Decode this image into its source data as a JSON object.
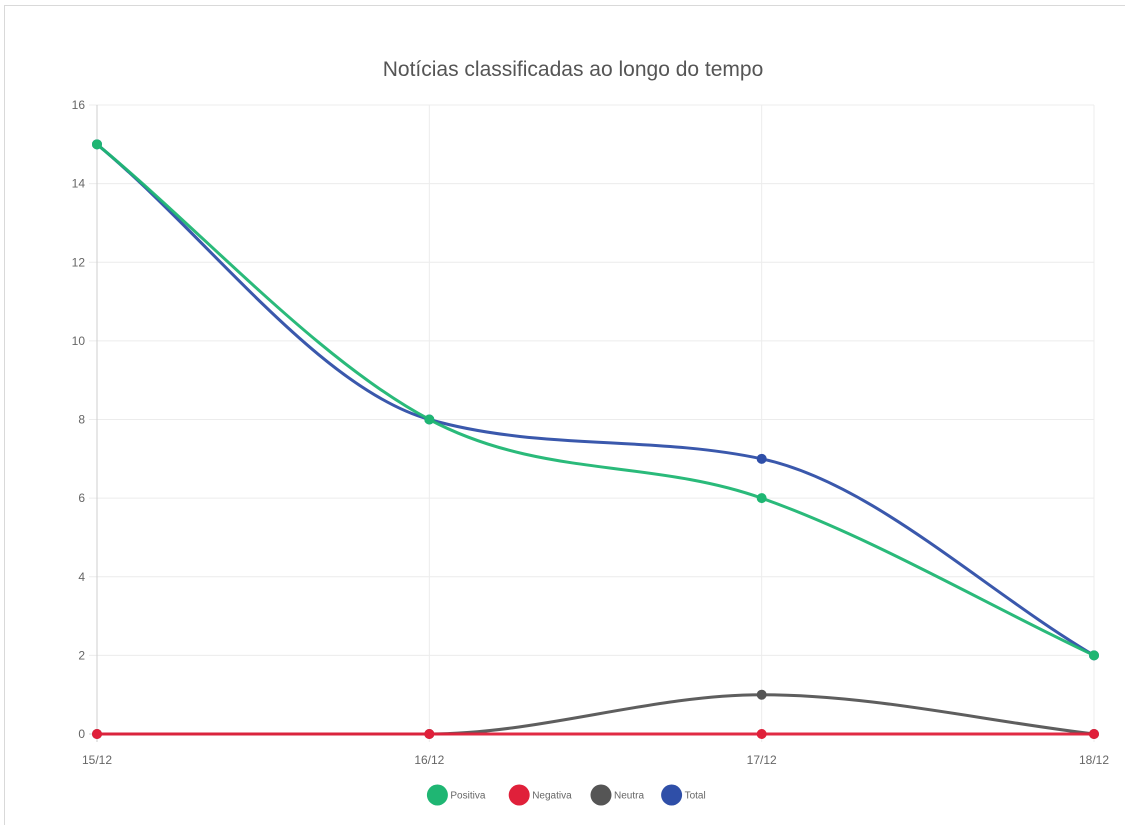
{
  "chart_data": {
    "type": "line",
    "title": "Notícias classificadas ao longo do tempo",
    "categories": [
      "15/12",
      "16/12",
      "17/12",
      "18/12"
    ],
    "y_ticks": [
      "0",
      "2",
      "4",
      "6",
      "8",
      "10",
      "12",
      "14",
      "16"
    ],
    "ylim": [
      0,
      16
    ],
    "grid": true,
    "legend_position": "bottom",
    "series": [
      {
        "name": "Positiva",
        "values": [
          15,
          8,
          6,
          2
        ],
        "color": "#1fb673"
      },
      {
        "name": "Negativa",
        "values": [
          0,
          0,
          0,
          0
        ],
        "color": "#e0203a"
      },
      {
        "name": "Neutra",
        "values": [
          0,
          0,
          1,
          0
        ],
        "color": "#555555"
      },
      {
        "name": "Total",
        "values": [
          15,
          8,
          7,
          2
        ],
        "color": "#2f4fa8"
      }
    ],
    "draw_order": [
      "Total",
      "Neutra",
      "Negativa",
      "Positiva"
    ]
  }
}
